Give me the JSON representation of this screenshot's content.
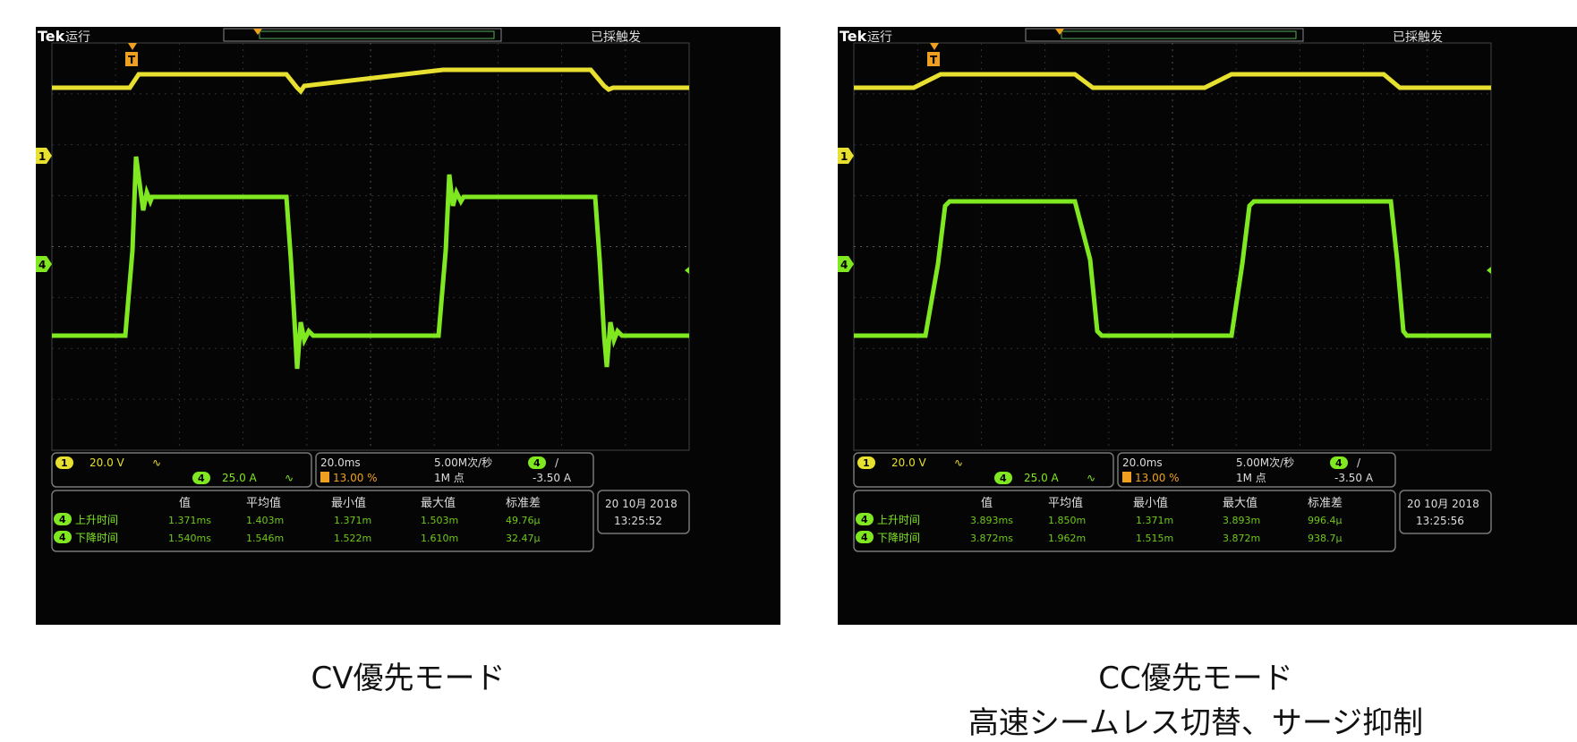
{
  "scopes": [
    {
      "id": "left",
      "brand": "Tek",
      "status": "运行",
      "trigger_status": "已採触发",
      "trigger_marker": "T",
      "ch1": {
        "marker": "1",
        "scale": "20.0 V",
        "icon": "∿"
      },
      "ch4": {
        "marker": "4",
        "scale": "25.0 A",
        "icon": "∿"
      },
      "timebase": "20.0ms",
      "trigger_pos": "13.00 %",
      "sample_rate": "5.00M次/秒",
      "record_length": "1M 点",
      "trig_channel": "4",
      "trig_slope": "/",
      "trig_level": "-3.50 A",
      "meas_headers": [
        "值",
        "平均值",
        "最小值",
        "最大值",
        "标准差"
      ],
      "meas_rows": [
        {
          "ch": "4",
          "label": "上升时间",
          "values": [
            "1.371ms",
            "1.403m",
            "1.371m",
            "1.503m",
            "49.76μ"
          ]
        },
        {
          "ch": "4",
          "label": "下降时间",
          "values": [
            "1.540ms",
            "1.546m",
            "1.522m",
            "1.610m",
            "32.47μ"
          ]
        }
      ],
      "date": "20 10月 2018",
      "time": "13:25:52",
      "colors": {
        "ch1": "#e8e030",
        "ch4": "#80e820"
      }
    },
    {
      "id": "right",
      "brand": "Tek",
      "status": "运行",
      "trigger_status": "已採触发",
      "trigger_marker": "T",
      "ch1": {
        "marker": "1",
        "scale": "20.0 V",
        "icon": "∿"
      },
      "ch4": {
        "marker": "4",
        "scale": "25.0 A",
        "icon": "∿"
      },
      "timebase": "20.0ms",
      "trigger_pos": "13.00 %",
      "sample_rate": "5.00M次/秒",
      "record_length": "1M 点",
      "trig_channel": "4",
      "trig_slope": "/",
      "trig_level": "-3.50 A",
      "meas_headers": [
        "值",
        "平均值",
        "最小值",
        "最大值",
        "标准差"
      ],
      "meas_rows": [
        {
          "ch": "4",
          "label": "上升时间",
          "values": [
            "3.893ms",
            "1.850m",
            "1.371m",
            "3.893m",
            "996.4μ"
          ]
        },
        {
          "ch": "4",
          "label": "下降时间",
          "values": [
            "3.872ms",
            "1.962m",
            "1.515m",
            "3.872m",
            "938.7μ"
          ]
        }
      ],
      "date": "20 10月 2018",
      "time": "13:25:56",
      "colors": {
        "ch1": "#e8e030",
        "ch4": "#80e820"
      }
    }
  ],
  "captions": {
    "left": "CV優先モード",
    "right_line1": "CC優先モード",
    "right_line2": "高速シームレス切替、サージ抑制"
  }
}
